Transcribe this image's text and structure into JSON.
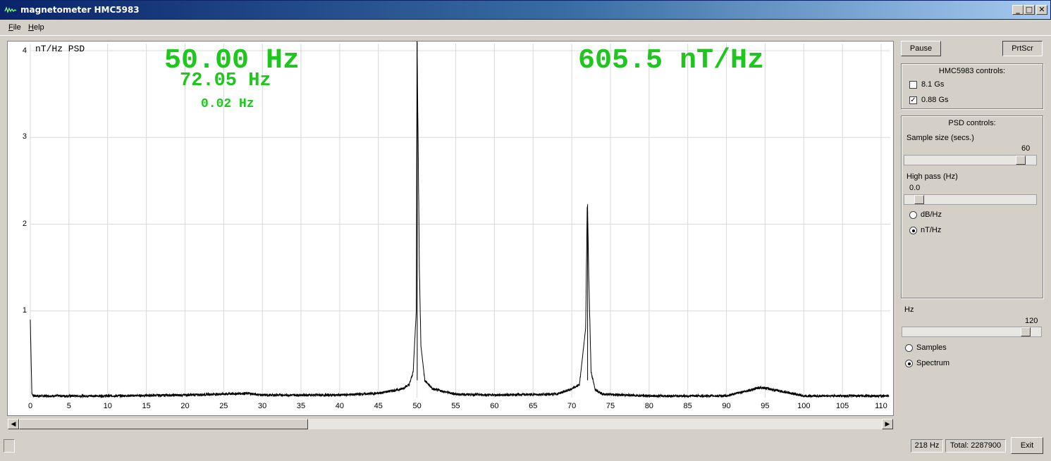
{
  "window": {
    "title": "magnetometer HMC5983",
    "min_label": "_",
    "max_label": "□",
    "close_label": "✕"
  },
  "menu": {
    "file_letter": "F",
    "file_rest": "ile",
    "help_letter": "H",
    "help_rest": "elp"
  },
  "plot": {
    "unit_label": "nT/Hz  PSD",
    "readout_peak_freq": "50.00 Hz",
    "readout_second_freq": "72.05 Hz",
    "readout_resolution": "0.02 Hz",
    "readout_amplitude": "605.5 nT/Hz",
    "y_ticks": [
      "4",
      "3",
      "2",
      "1"
    ],
    "x_ticks": [
      "0",
      "5",
      "10",
      "15",
      "20",
      "25",
      "30",
      "35",
      "40",
      "45",
      "50",
      "55",
      "60",
      "65",
      "70",
      "75",
      "80",
      "85",
      "90",
      "95",
      "100",
      "105",
      "110"
    ]
  },
  "chart_data": {
    "type": "line",
    "xlim": [
      0,
      111
    ],
    "ylim": [
      0,
      4.1
    ],
    "grid": true,
    "series": [
      {
        "x": [
          0,
          0.1,
          0.2,
          0.4,
          1,
          10,
          20,
          28,
          30,
          40,
          45,
          48,
          49,
          49.5,
          49.9,
          50.0,
          50.1,
          50.3,
          50.5,
          51,
          52,
          55,
          60,
          68,
          70,
          71,
          71.8,
          72.0,
          72.05,
          72.2,
          72.5,
          73,
          74,
          80,
          90,
          94.5,
          100,
          111
        ],
        "values": [
          0.9,
          0.45,
          0.05,
          0.02,
          0.02,
          0.02,
          0.03,
          0.05,
          0.03,
          0.03,
          0.05,
          0.1,
          0.15,
          0.3,
          1.0,
          4.1,
          3.3,
          1.5,
          0.6,
          0.2,
          0.1,
          0.04,
          0.03,
          0.04,
          0.1,
          0.15,
          0.8,
          2.2,
          2.2,
          1.4,
          0.3,
          0.1,
          0.04,
          0.02,
          0.02,
          0.12,
          0.02,
          0.02
        ]
      }
    ]
  },
  "controls": {
    "pause_label": "Pause",
    "prtscr_label": "PrtScr",
    "hmc_group_title": "HMC5983 controls:",
    "range_81_label": "8.1 Gs",
    "range_088_label": "0.88 Gs",
    "range_81_checked": false,
    "range_088_checked": true,
    "psd_group_title": "PSD controls:",
    "sample_size_label": "Sample size (secs.)",
    "sample_size_value": "60",
    "high_pass_label": "High pass (Hz)",
    "high_pass_value": "0.0",
    "db_label": "dB/Hz",
    "nt_label": "nT/Hz",
    "hz_label": "Hz",
    "hz_value": "120",
    "samples_label": "Samples",
    "spectrum_label": "Spectrum"
  },
  "status": {
    "rate": "218 Hz",
    "total": "Total: 2287900",
    "exit_label": "Exit"
  }
}
